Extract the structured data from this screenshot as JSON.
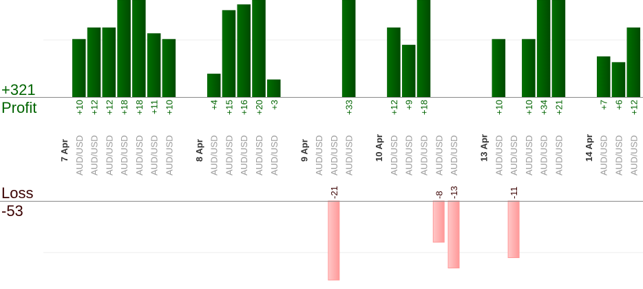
{
  "chart_data": {
    "type": "bar",
    "profit_total": "+321",
    "profit_label": "Profit",
    "loss_label": "Loss",
    "loss_total": "-53",
    "grid": true,
    "colors": {
      "profit": "#006400",
      "loss": "#ffaaaa",
      "profit_text": "#006400",
      "loss_text": "#3a0000",
      "pair_text": "#999999",
      "date_text": "#333333"
    },
    "groups": [
      {
        "date": "7 Apr",
        "trades": [
          {
            "pair": "AUD/USD",
            "value": 10,
            "label": "+10"
          },
          {
            "pair": "AUD/USD",
            "value": 12,
            "label": "+12"
          },
          {
            "pair": "AUD/USD",
            "value": 12,
            "label": "+12"
          },
          {
            "pair": "AUD/USD",
            "value": 18,
            "label": "+18"
          },
          {
            "pair": "AUD/USD",
            "value": 18,
            "label": "+18"
          },
          {
            "pair": "AUD/USD",
            "value": 11,
            "label": "+11"
          },
          {
            "pair": "AUD/USD",
            "value": 10,
            "label": "+10"
          }
        ]
      },
      {
        "date": "8 Apr",
        "trades": [
          {
            "pair": "AUD/USD",
            "value": 4,
            "label": "+4"
          },
          {
            "pair": "AUD/USD",
            "value": 15,
            "label": "+15"
          },
          {
            "pair": "AUD/USD",
            "value": 16,
            "label": "+16"
          },
          {
            "pair": "AUD/USD",
            "value": 20,
            "label": "+20"
          },
          {
            "pair": "AUD/USD",
            "value": 3,
            "label": "+3"
          }
        ]
      },
      {
        "date": "9 Apr",
        "trades": [
          {
            "pair": "AUD/USD",
            "value": 0,
            "label": ""
          },
          {
            "pair": "AUD/USD",
            "value": -21,
            "label": "-21"
          },
          {
            "pair": "AUD/USD",
            "value": 33,
            "label": "+33"
          }
        ]
      },
      {
        "date": "10 Apr",
        "trades": [
          {
            "pair": "AUD/USD",
            "value": 12,
            "label": "+12"
          },
          {
            "pair": "AUD/USD",
            "value": 9,
            "label": "+9"
          },
          {
            "pair": "AUD/USD",
            "value": 18,
            "label": "+18"
          },
          {
            "pair": "AUD/USD",
            "value": -8,
            "label": "-8"
          },
          {
            "pair": "AUD/USD",
            "value": -13,
            "label": "-13"
          }
        ]
      },
      {
        "date": "13 Apr",
        "trades": [
          {
            "pair": "AUD/USD",
            "value": 10,
            "label": "+10"
          },
          {
            "pair": "AUD/USD",
            "value": -11,
            "label": "-11"
          },
          {
            "pair": "AUD/USD",
            "value": 10,
            "label": "+10"
          },
          {
            "pair": "AUD/USD",
            "value": 34,
            "label": "+34"
          },
          {
            "pair": "AUD/USD",
            "value": 21,
            "label": "+21"
          }
        ]
      },
      {
        "date": "14 Apr",
        "trades": [
          {
            "pair": "AUD/USD",
            "value": 7,
            "label": "+7"
          },
          {
            "pair": "AUD/USD",
            "value": 6,
            "label": "+6"
          },
          {
            "pair": "AUD/USD",
            "value": 12,
            "label": "+12"
          }
        ]
      }
    ]
  }
}
